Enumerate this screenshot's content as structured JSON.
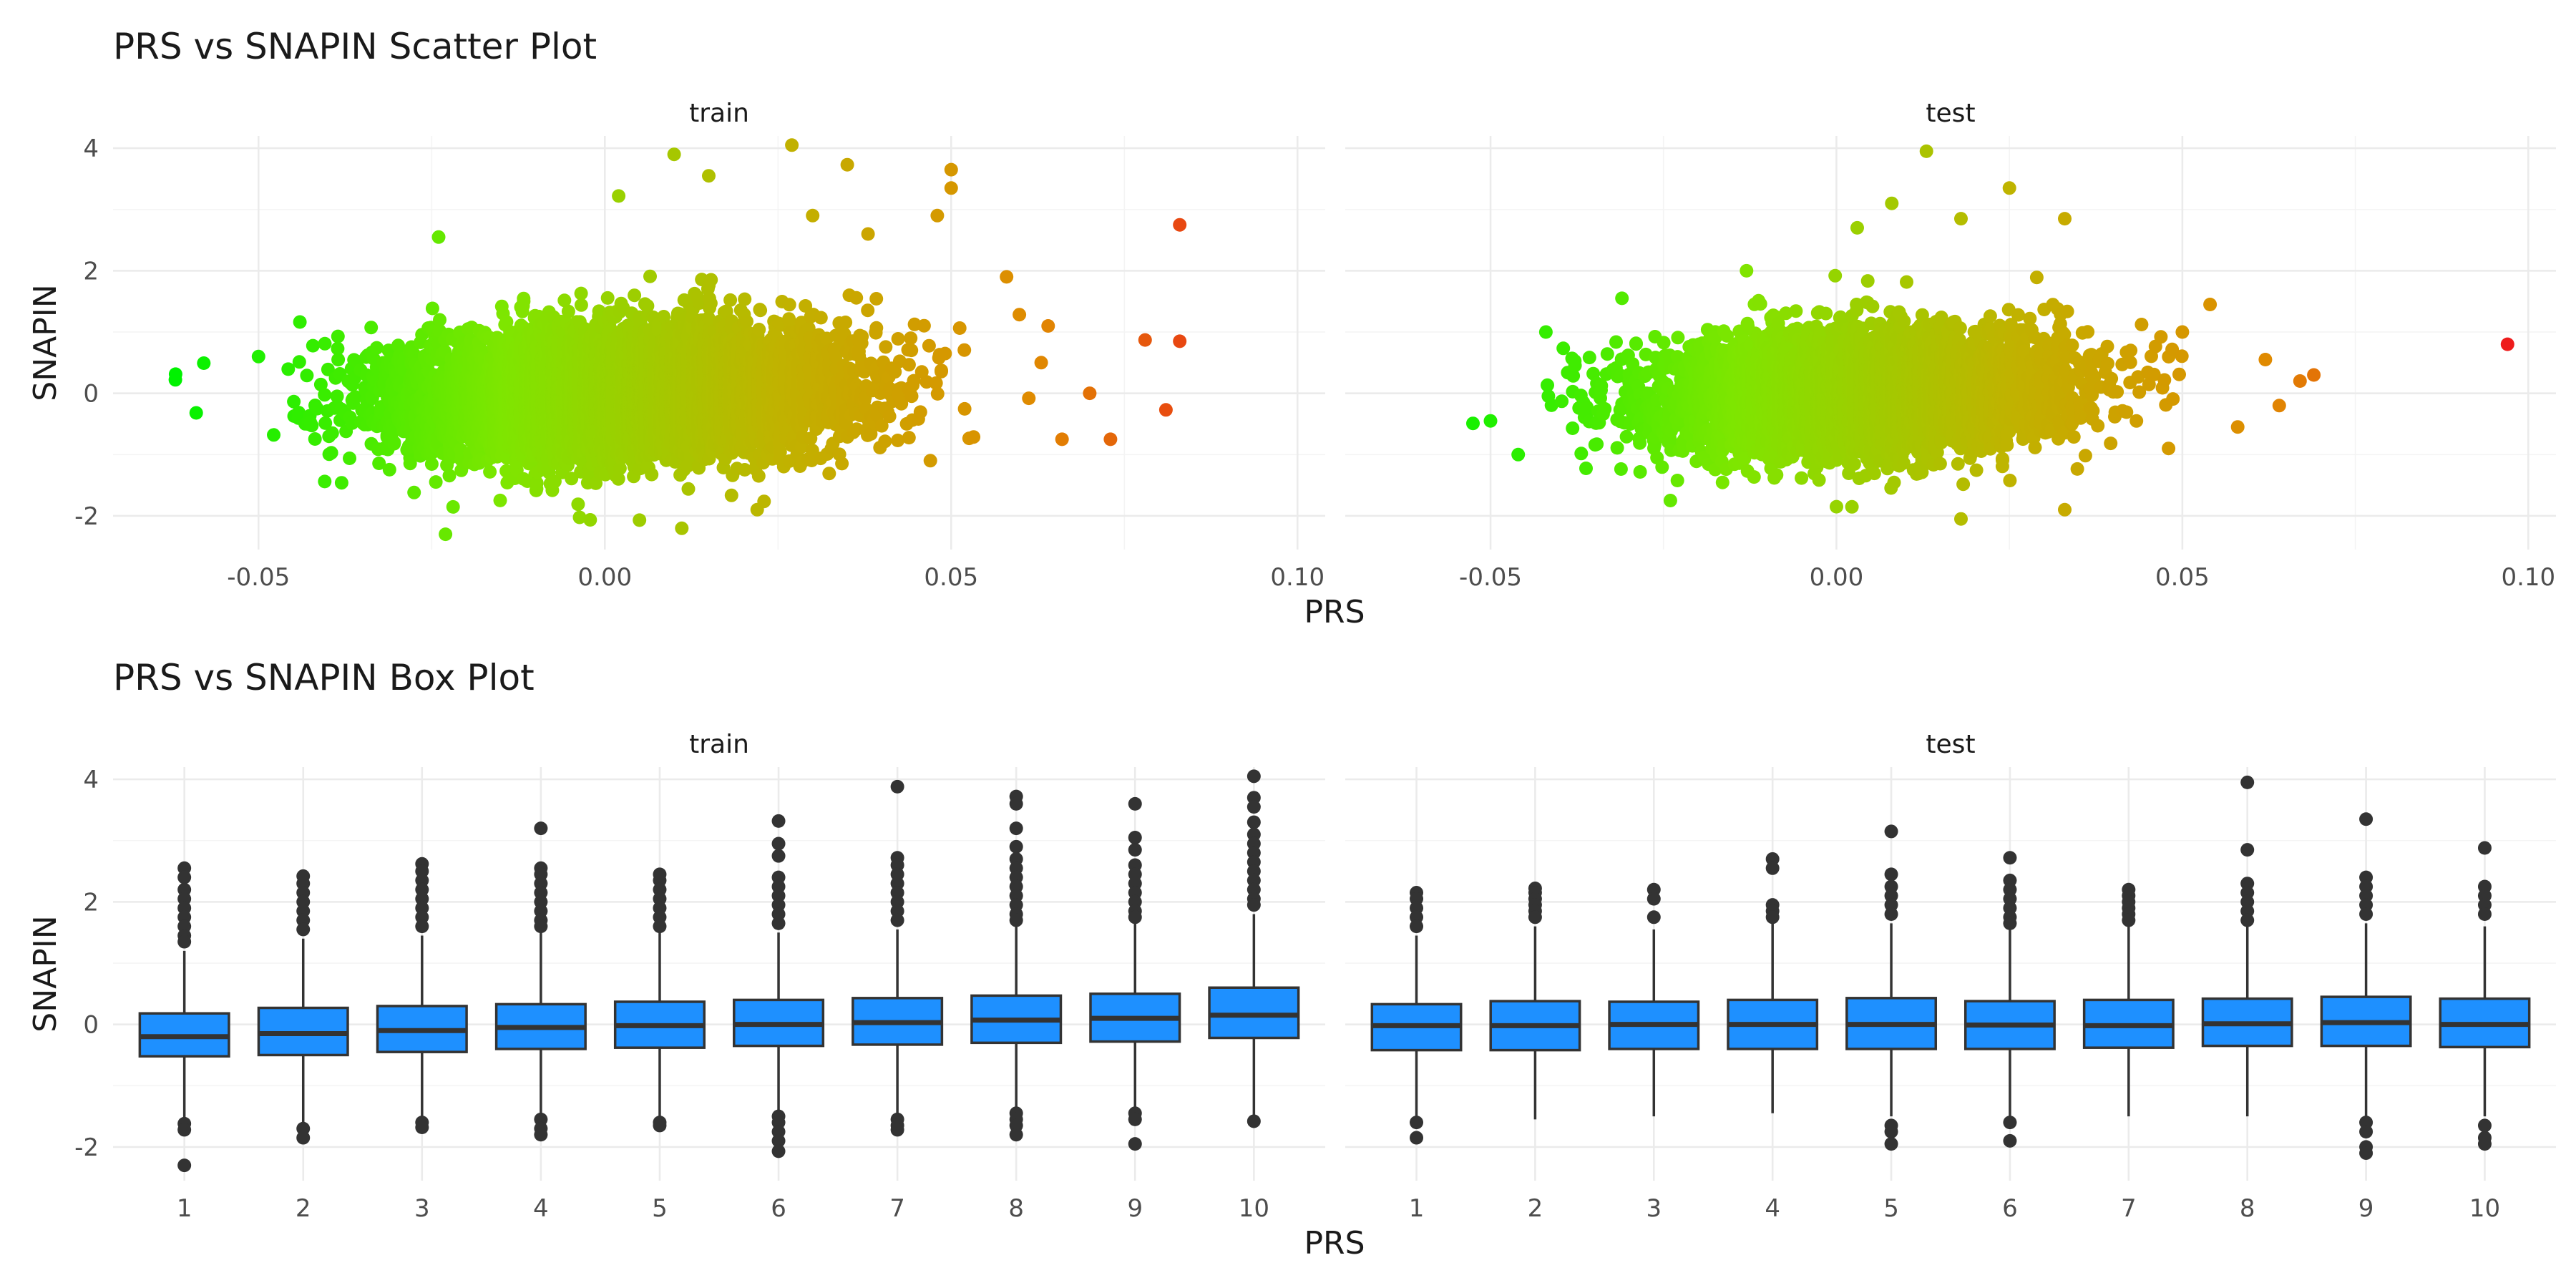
{
  "figure": {
    "scatter_title": "PRS vs SNAPIN Scatter Plot",
    "box_title": "PRS vs SNAPIN Box Plot"
  },
  "chart_data": [
    {
      "type": "scatter",
      "title": "PRS vs SNAPIN Scatter Plot",
      "xlabel": "PRS",
      "ylabel": "SNAPIN",
      "facets": [
        "train",
        "test"
      ],
      "xlim": [
        -0.071,
        0.104
      ],
      "ylim": [
        -2.55,
        4.2
      ],
      "x_ticks": [
        -0.05,
        0.0,
        0.05,
        0.1
      ],
      "x_tick_labels": [
        "-0.05",
        "0.00",
        "0.05",
        "0.10"
      ],
      "y_ticks": [
        -2,
        0,
        2,
        4
      ],
      "y_tick_labels": [
        "-2",
        "0",
        "2",
        "4"
      ],
      "color_scale": {
        "low": "#00ff00",
        "high": "#ff0000",
        "mapped_to": "PRS",
        "legend": "none"
      },
      "grid": true,
      "series": [
        {
          "facet": "train",
          "n_approx": 9000,
          "x_mean": 0.002,
          "x_sd": 0.015,
          "y_mean": 0.0,
          "y_sd": 0.5,
          "highlighted_points": [
            [
              -0.062,
              0.22
            ],
            [
              -0.059,
              -0.32
            ],
            [
              -0.05,
              0.6
            ],
            [
              -0.023,
              -2.3
            ],
            [
              -0.024,
              2.55
            ],
            [
              0.005,
              -2.07
            ],
            [
              0.002,
              3.22
            ],
            [
              0.01,
              3.9
            ],
            [
              0.027,
              4.05
            ],
            [
              0.035,
              3.73
            ],
            [
              0.05,
              3.65
            ],
            [
              0.05,
              3.35
            ],
            [
              0.048,
              2.9
            ],
            [
              0.083,
              2.75
            ],
            [
              0.083,
              0.85
            ],
            [
              0.078,
              0.87
            ],
            [
              0.081,
              -0.27
            ],
            [
              0.073,
              -0.75
            ],
            [
              0.07,
              0.0
            ],
            [
              0.066,
              -0.75
            ],
            [
              0.063,
              0.5
            ],
            [
              0.064,
              1.1
            ],
            [
              0.058,
              1.9
            ],
            [
              0.047,
              -1.1
            ],
            [
              0.022,
              -1.9
            ],
            [
              0.015,
              3.55
            ],
            [
              0.03,
              2.9
            ],
            [
              0.038,
              2.6
            ]
          ]
        },
        {
          "facet": "test",
          "n_approx": 5500,
          "x_mean": 0.004,
          "x_sd": 0.0145,
          "y_mean": 0.0,
          "y_sd": 0.48,
          "highlighted_points": [
            [
              0.097,
              0.8
            ],
            [
              -0.05,
              -0.45
            ],
            [
              -0.046,
              -1.0
            ],
            [
              -0.042,
              1.0
            ],
            [
              -0.031,
              1.55
            ],
            [
              0.013,
              3.95
            ],
            [
              0.018,
              2.85
            ],
            [
              0.025,
              3.35
            ],
            [
              0.033,
              2.85
            ],
            [
              0.008,
              3.1
            ],
            [
              0.003,
              2.7
            ],
            [
              0.018,
              -2.05
            ],
            [
              0.033,
              -1.9
            ],
            [
              0.069,
              0.3
            ],
            [
              0.067,
              0.2
            ],
            [
              0.064,
              -0.2
            ],
            [
              0.062,
              0.55
            ],
            [
              0.058,
              -0.55
            ],
            [
              0.054,
              1.45
            ],
            [
              0.05,
              1.0
            ],
            [
              -0.013,
              2.0
            ],
            [
              0.0,
              -1.85
            ],
            [
              -0.024,
              -1.75
            ],
            [
              0.048,
              -0.9
            ]
          ]
        }
      ]
    },
    {
      "type": "box",
      "title": "PRS vs SNAPIN Box Plot",
      "xlabel": "PRS",
      "ylabel": "SNAPIN",
      "facets": [
        "train",
        "test"
      ],
      "categories": [
        "1",
        "2",
        "3",
        "4",
        "5",
        "6",
        "7",
        "8",
        "9",
        "10"
      ],
      "ylim": [
        -2.55,
        4.2
      ],
      "y_ticks": [
        -2,
        0,
        2,
        4
      ],
      "y_tick_labels": [
        "-2",
        "0",
        "2",
        "4"
      ],
      "box_fill": "#1e90ff",
      "box_line": "#333333",
      "grid": true,
      "series": [
        {
          "facet": "train",
          "boxes": [
            {
              "q1": -0.52,
              "median": -0.2,
              "q3": 0.18,
              "lower": -1.55,
              "upper": 1.2,
              "outliers": [
                2.55,
                2.4,
                2.2,
                2.05,
                1.9,
                1.75,
                1.6,
                1.45,
                1.35,
                -1.62,
                -1.72,
                -2.3
              ]
            },
            {
              "q1": -0.5,
              "median": -0.15,
              "q3": 0.27,
              "lower": -1.6,
              "upper": 1.4,
              "outliers": [
                2.42,
                2.3,
                2.15,
                2.0,
                1.85,
                1.7,
                1.55,
                -1.7,
                -1.85
              ]
            },
            {
              "q1": -0.45,
              "median": -0.1,
              "q3": 0.3,
              "lower": -1.55,
              "upper": 1.45,
              "outliers": [
                2.62,
                2.5,
                2.35,
                2.2,
                2.05,
                1.9,
                1.75,
                1.6,
                -1.6,
                -1.68
              ]
            },
            {
              "q1": -0.4,
              "median": -0.05,
              "q3": 0.33,
              "lower": -1.5,
              "upper": 1.5,
              "outliers": [
                3.2,
                2.55,
                2.45,
                2.3,
                2.15,
                2.0,
                1.85,
                1.7,
                1.6,
                -1.55,
                -1.7,
                -1.8
              ]
            },
            {
              "q1": -0.38,
              "median": -0.02,
              "q3": 0.37,
              "lower": -1.55,
              "upper": 1.5,
              "outliers": [
                2.45,
                2.35,
                2.2,
                2.05,
                1.9,
                1.75,
                1.6,
                -1.6,
                -1.65
              ]
            },
            {
              "q1": -0.35,
              "median": 0.0,
              "q3": 0.4,
              "lower": -1.45,
              "upper": 1.5,
              "outliers": [
                3.32,
                2.95,
                2.75,
                2.4,
                2.25,
                2.1,
                1.95,
                1.8,
                1.65,
                -1.5,
                -1.6,
                -1.75,
                -1.9,
                -2.07
              ]
            },
            {
              "q1": -0.33,
              "median": 0.03,
              "q3": 0.43,
              "lower": -1.5,
              "upper": 1.55,
              "outliers": [
                3.88,
                2.72,
                2.6,
                2.45,
                2.3,
                2.15,
                2.0,
                1.85,
                1.7,
                -1.55,
                -1.65,
                -1.72
              ]
            },
            {
              "q1": -0.3,
              "median": 0.07,
              "q3": 0.47,
              "lower": -1.45,
              "upper": 1.6,
              "outliers": [
                3.72,
                3.6,
                3.2,
                2.9,
                2.7,
                2.55,
                2.4,
                2.25,
                2.1,
                1.95,
                1.8,
                1.7,
                -1.45,
                -1.55,
                -1.65,
                -1.8
              ]
            },
            {
              "q1": -0.28,
              "median": 0.1,
              "q3": 0.5,
              "lower": -1.4,
              "upper": 1.65,
              "outliers": [
                3.6,
                3.05,
                2.85,
                2.6,
                2.45,
                2.3,
                2.15,
                2.0,
                1.85,
                1.75,
                -1.45,
                -1.55,
                -1.95
              ]
            },
            {
              "q1": -0.22,
              "median": 0.15,
              "q3": 0.6,
              "lower": -1.55,
              "upper": 1.8,
              "outliers": [
                4.05,
                3.7,
                3.55,
                3.3,
                3.1,
                2.95,
                2.8,
                2.65,
                2.5,
                2.35,
                2.2,
                2.05,
                1.95,
                -1.58
              ]
            }
          ]
        },
        {
          "facet": "test",
          "boxes": [
            {
              "q1": -0.42,
              "median": -0.02,
              "q3": 0.33,
              "lower": -1.5,
              "upper": 1.45,
              "outliers": [
                2.15,
                2.05,
                1.9,
                1.75,
                1.6,
                -1.6,
                -1.85
              ]
            },
            {
              "q1": -0.42,
              "median": -0.02,
              "q3": 0.38,
              "lower": -1.55,
              "upper": 1.6,
              "outliers": [
                2.22,
                2.15,
                2.05,
                1.95,
                1.85,
                1.75
              ]
            },
            {
              "q1": -0.4,
              "median": 0.0,
              "q3": 0.37,
              "lower": -1.5,
              "upper": 1.55,
              "outliers": [
                2.2,
                2.05,
                1.75
              ]
            },
            {
              "q1": -0.4,
              "median": 0.0,
              "q3": 0.4,
              "lower": -1.45,
              "upper": 1.65,
              "outliers": [
                2.7,
                2.55,
                1.95,
                1.85,
                1.75
              ]
            },
            {
              "q1": -0.4,
              "median": 0.0,
              "q3": 0.43,
              "lower": -1.5,
              "upper": 1.65,
              "outliers": [
                3.15,
                2.45,
                2.25,
                2.1,
                1.95,
                1.8,
                -1.65,
                -1.75,
                -1.95
              ]
            },
            {
              "q1": -0.4,
              "median": -0.01,
              "q3": 0.38,
              "lower": -1.5,
              "upper": 1.55,
              "outliers": [
                2.72,
                2.35,
                2.2,
                2.05,
                1.9,
                1.75,
                1.65,
                -1.6,
                -1.9
              ]
            },
            {
              "q1": -0.38,
              "median": -0.02,
              "q3": 0.4,
              "lower": -1.5,
              "upper": 1.6,
              "outliers": [
                2.2,
                2.1,
                2.0,
                1.9,
                1.8,
                1.7
              ]
            },
            {
              "q1": -0.35,
              "median": 0.01,
              "q3": 0.42,
              "lower": -1.5,
              "upper": 1.6,
              "outliers": [
                3.95,
                2.85,
                2.3,
                2.15,
                2.0,
                1.85,
                1.7
              ]
            },
            {
              "q1": -0.35,
              "median": 0.03,
              "q3": 0.45,
              "lower": -1.5,
              "upper": 1.65,
              "outliers": [
                3.35,
                2.4,
                2.25,
                2.1,
                1.95,
                1.8,
                -1.6,
                -1.75,
                -2.0,
                -2.1
              ]
            },
            {
              "q1": -0.37,
              "median": 0.0,
              "q3": 0.42,
              "lower": -1.5,
              "upper": 1.6,
              "outliers": [
                2.88,
                2.25,
                2.1,
                1.95,
                1.8,
                -1.65,
                -1.85,
                -1.95
              ]
            }
          ]
        }
      ]
    }
  ]
}
